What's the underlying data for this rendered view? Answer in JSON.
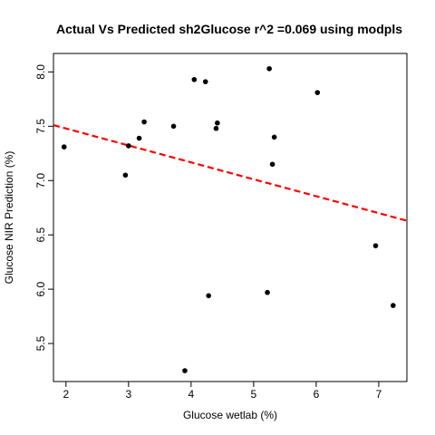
{
  "chart_data": {
    "type": "scatter",
    "title": "Actual Vs Predicted sh2Glucose r^2 =0.069 using modpls",
    "xlabel": "Glucose wetlab (%)",
    "ylabel": "Glucose NIR Prediction (%)",
    "xlim": [
      1.8,
      7.45
    ],
    "ylim": [
      5.15,
      8.17
    ],
    "x_ticks": [
      2,
      3,
      4,
      5,
      6,
      7
    ],
    "y_ticks": [
      5.5,
      6.0,
      6.5,
      7.0,
      7.5,
      8.0
    ],
    "x_tick_labels": [
      "2",
      "3",
      "4",
      "5",
      "6",
      "7"
    ],
    "y_tick_labels": [
      "5.5",
      "6.0",
      "6.5",
      "7.0",
      "7.5",
      "8.0"
    ],
    "points": [
      {
        "x": 1.97,
        "y": 7.31
      },
      {
        "x": 2.95,
        "y": 7.05
      },
      {
        "x": 3.0,
        "y": 7.32
      },
      {
        "x": 3.17,
        "y": 7.39
      },
      {
        "x": 3.25,
        "y": 7.54
      },
      {
        "x": 3.72,
        "y": 7.5
      },
      {
        "x": 3.9,
        "y": 5.25
      },
      {
        "x": 4.05,
        "y": 7.93
      },
      {
        "x": 4.23,
        "y": 7.91
      },
      {
        "x": 4.28,
        "y": 5.94
      },
      {
        "x": 4.4,
        "y": 7.48
      },
      {
        "x": 4.42,
        "y": 7.53
      },
      {
        "x": 5.22,
        "y": 5.97
      },
      {
        "x": 5.25,
        "y": 8.03
      },
      {
        "x": 5.3,
        "y": 7.15
      },
      {
        "x": 5.33,
        "y": 7.4
      },
      {
        "x": 6.02,
        "y": 7.81
      },
      {
        "x": 6.95,
        "y": 6.4
      },
      {
        "x": 7.23,
        "y": 5.85
      }
    ],
    "fit_line": {
      "style": "dashed",
      "color": "#ff0000",
      "x": [
        1.8,
        7.45
      ],
      "y": [
        7.51,
        6.63
      ]
    },
    "point_color": "#000000",
    "grid": false,
    "legend": "none"
  }
}
